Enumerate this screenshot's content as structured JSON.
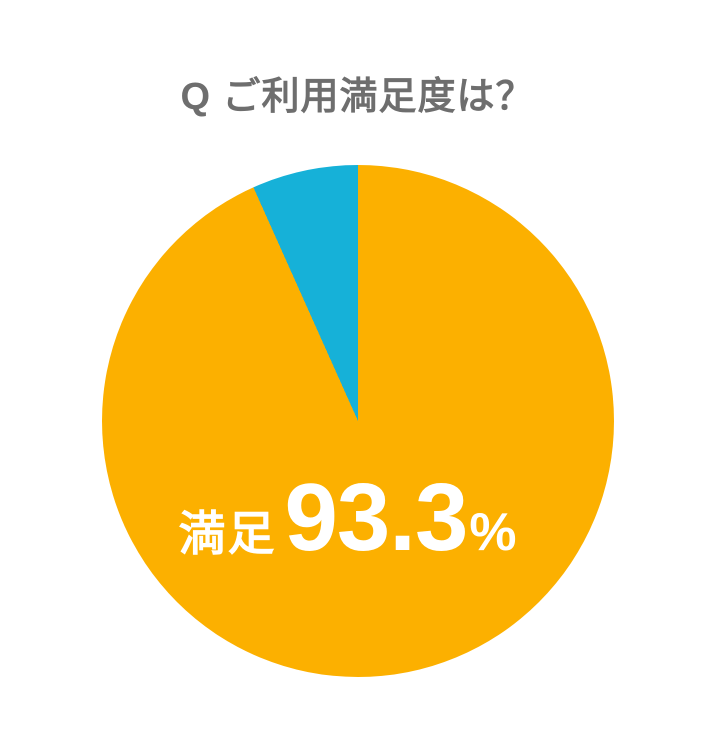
{
  "card": {
    "background": "#FFFFFF"
  },
  "title": {
    "text": "Q ご利用満足度は？",
    "color": "#6E6E6E"
  },
  "chart_data": {
    "type": "pie",
    "title": "Q ご利用満足度は？",
    "start_angle_deg": 0,
    "direction": "clockwise",
    "slices": [
      {
        "label": "満足",
        "value": 93.3,
        "color": "#FCB000"
      },
      {
        "label": "",
        "value": 6.7,
        "color": "#16B1D8"
      }
    ],
    "center_label": {
      "prefix": "満足",
      "value": "93.3",
      "suffix": "%",
      "color": "#FFFFFF"
    }
  }
}
